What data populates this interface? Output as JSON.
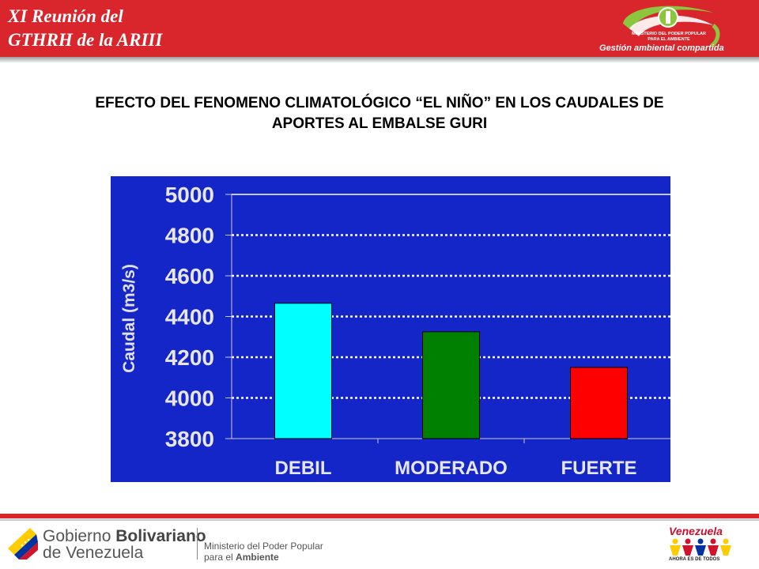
{
  "header": {
    "line1": "XI Reunión del",
    "line2": "GTHRH de la ARIII",
    "logo_text_1": "MINISTERIO DEL PODER POPULAR",
    "logo_text_2": "PARA EL AMBIENTE",
    "tagline": "Gestión ambiental compartida"
  },
  "slide": {
    "title_line1": "EFECTO DEL FENOMENO CLIMATOLÓGICO “EL NIÑO” EN LOS CAUDALES DE",
    "title_line2": "APORTES AL EMBALSE GURI"
  },
  "chart_data": {
    "type": "bar",
    "categories": [
      "DEBIL",
      "MODERADO",
      "FUERTE"
    ],
    "values": [
      4465,
      4325,
      4150
    ],
    "colors": [
      "#00ffff",
      "#008000",
      "#ff0000"
    ],
    "ylabel": "Caudal (m3/s)",
    "ylim": [
      3800,
      5000
    ],
    "yticks": [
      "3800",
      "4000",
      "4200",
      "4400",
      "4600",
      "4800",
      "5000"
    ],
    "grid": true,
    "background": "#1526c8"
  },
  "footer": {
    "gov_line1_a": "Gobierno",
    "gov_line1_b": "Bolivariano",
    "gov_line2": "de Venezuela",
    "ministry_line1": "Ministerio del Poder Popular",
    "ministry_line2_a": "para el",
    "ministry_line2_b": "Ambiente",
    "venezuela_word": "Venezuela",
    "venezuela_sub": "AHORA ES DE TODOS"
  },
  "colors": {
    "brand_red": "#d9262c",
    "chart_blue": "#1526c8"
  }
}
